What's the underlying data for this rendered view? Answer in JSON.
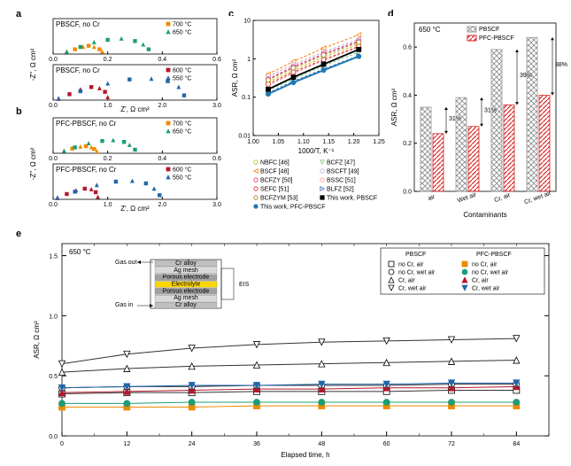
{
  "panel_a": {
    "label": "a",
    "title1": "PBSCF, no Cr",
    "title2": "PBSCF, no Cr",
    "xlabel": "Z', Ω cm²",
    "ylabel": "-Z'', Ω cm²",
    "legend1": [
      "700 °C",
      "650 °C"
    ],
    "legend2": [
      "600 °C",
      "550 °C"
    ],
    "colors": {
      "700": "#ed8b00",
      "650": "#1b9e77",
      "600": "#b2182b",
      "550": "#2166ac"
    },
    "top": {
      "xlim": [
        0,
        0.6
      ],
      "xtick": [
        0.0,
        0.2,
        0.4,
        0.6
      ],
      "ylim": [
        0,
        0.15
      ],
      "data700_x": [
        0.05,
        0.08,
        0.11,
        0.13,
        0.15,
        0.17,
        0.18
      ],
      "data700_y": [
        0.01,
        0.02,
        0.03,
        0.035,
        0.03,
        0.02,
        0.01
      ],
      "data650_x": [
        0.05,
        0.1,
        0.15,
        0.2,
        0.25,
        0.3,
        0.33,
        0.35
      ],
      "data650_y": [
        0.01,
        0.03,
        0.05,
        0.06,
        0.065,
        0.055,
        0.04,
        0.02
      ]
    },
    "bot": {
      "xlim": [
        0,
        3
      ],
      "xtick": [
        0,
        1,
        2,
        3
      ],
      "ylim": [
        0,
        0.6
      ],
      "data600_x": [
        0.1,
        0.3,
        0.5,
        0.7,
        0.85,
        0.95,
        1.0
      ],
      "data600_y": [
        0.02,
        0.1,
        0.18,
        0.22,
        0.2,
        0.14,
        0.05
      ],
      "data550_x": [
        0.1,
        0.5,
        1.0,
        1.4,
        1.8,
        2.1,
        2.3,
        2.4
      ],
      "data550_y": [
        0.03,
        0.15,
        0.28,
        0.35,
        0.36,
        0.32,
        0.22,
        0.08
      ]
    }
  },
  "panel_b": {
    "label": "b",
    "title1": "PFC-PBSCF, no Cr",
    "title2": "PFC-PBSCF, no Cr",
    "xlabel": "Z', Ω cm²",
    "ylabel": "-Z'', Ω cm²",
    "legend1": [
      "700 °C",
      "650 °C"
    ],
    "legend2": [
      "600 °C",
      "550 °C"
    ],
    "colors": {
      "700": "#ed8b00",
      "650": "#1b9e77",
      "600": "#b2182b",
      "550": "#2166ac"
    },
    "top": {
      "xlim": [
        0,
        0.6
      ],
      "xtick": [
        0.0,
        0.2,
        0.4,
        0.6
      ],
      "ylim": [
        0,
        0.15
      ],
      "data700_x": [
        0.04,
        0.07,
        0.1,
        0.12,
        0.14,
        0.15,
        0.16
      ],
      "data700_y": [
        0.01,
        0.02,
        0.028,
        0.03,
        0.025,
        0.018,
        0.008
      ],
      "data650_x": [
        0.04,
        0.08,
        0.13,
        0.18,
        0.22,
        0.26,
        0.28,
        0.3
      ],
      "data650_y": [
        0.01,
        0.025,
        0.042,
        0.052,
        0.055,
        0.048,
        0.035,
        0.015
      ]
    },
    "bot": {
      "xlim": [
        0,
        3
      ],
      "xtick": [
        0,
        1,
        2,
        3
      ],
      "ylim": [
        0,
        0.6
      ],
      "data600_x": [
        0.08,
        0.25,
        0.42,
        0.58,
        0.7,
        0.78,
        0.82
      ],
      "data600_y": [
        0.02,
        0.09,
        0.15,
        0.18,
        0.17,
        0.12,
        0.04
      ],
      "data550_x": [
        0.08,
        0.4,
        0.8,
        1.15,
        1.45,
        1.7,
        1.85,
        1.95
      ],
      "data550_y": [
        0.03,
        0.13,
        0.24,
        0.3,
        0.31,
        0.27,
        0.18,
        0.07
      ]
    }
  },
  "panel_c": {
    "label": "c",
    "xlabel": "1000/T, K⁻¹",
    "ylabel": "ASR, Ω cm²",
    "xlim": [
      1.0,
      1.25
    ],
    "xtick": [
      1.0,
      1.05,
      1.1,
      1.15,
      1.2,
      1.25
    ],
    "ylim": [
      0.01,
      10
    ],
    "ytick": [
      0.01,
      0.1,
      1,
      10
    ],
    "ytick_lbl": [
      "0.01",
      "0.1",
      "1",
      "10"
    ],
    "series": [
      {
        "name": "NBFC [46]",
        "color": "#bcbd22",
        "marker": "circle",
        "x": [
          1.03,
          1.08,
          1.14,
          1.21
        ],
        "y": [
          0.25,
          0.5,
          1.1,
          2.4
        ],
        "dashed": true
      },
      {
        "name": "BCFZ [47]",
        "color": "#7fc97f",
        "marker": "triangle-down",
        "x": [
          1.03,
          1.08,
          1.14,
          1.21
        ],
        "y": [
          0.15,
          0.3,
          0.65,
          1.5
        ],
        "dashed": true
      },
      {
        "name": "BSCF [48]",
        "color": "#ff7f0e",
        "marker": "triangle-left",
        "x": [
          1.03,
          1.08,
          1.14,
          1.21
        ],
        "y": [
          0.4,
          0.85,
          1.9,
          4.2
        ],
        "dashed": true
      },
      {
        "name": "BSCFT [49]",
        "color": "#beaed4",
        "marker": "circle",
        "x": [
          1.03,
          1.08,
          1.14,
          1.21
        ],
        "y": [
          0.35,
          0.7,
          1.5,
          3.2
        ],
        "dashed": true
      },
      {
        "name": "BCFZY [50]",
        "color": "#e7298a",
        "marker": "star",
        "x": [
          1.03,
          1.08,
          1.14,
          1.21
        ],
        "y": [
          0.3,
          0.62,
          1.35,
          2.9
        ],
        "dashed": true
      },
      {
        "name": "BSSC [51]",
        "color": "#fb9a99",
        "marker": "hex",
        "x": [
          1.03,
          1.08,
          1.14,
          1.21
        ],
        "y": [
          0.2,
          0.42,
          0.9,
          2.0
        ],
        "dashed": true
      },
      {
        "name": "SEFC [51]",
        "color": "#d62728",
        "marker": "star",
        "x": [
          1.03,
          1.08,
          1.14,
          1.21
        ],
        "y": [
          0.22,
          0.45,
          0.95,
          2.1
        ],
        "dashed": true
      },
      {
        "name": "BLFZ [52]",
        "color": "#386cb0",
        "marker": "triangle-right",
        "x": [
          1.03,
          1.08,
          1.14,
          1.21
        ],
        "y": [
          0.13,
          0.26,
          0.54,
          1.2
        ],
        "dashed": true
      },
      {
        "name": "BCFZYM [53]",
        "color": "#a6761d",
        "marker": "star",
        "x": [
          1.03,
          1.08,
          1.14,
          1.21
        ],
        "y": [
          0.28,
          0.58,
          1.25,
          2.7
        ],
        "dashed": true
      },
      {
        "name": "This work, PBSCF",
        "color": "#000000",
        "marker": "square",
        "x": [
          1.03,
          1.08,
          1.14,
          1.21
        ],
        "y": [
          0.16,
          0.33,
          0.72,
          1.75
        ],
        "dashed": false
      },
      {
        "name": "This work, PFC-PBSCF",
        "color": "#1f77b4",
        "marker": "circle",
        "x": [
          1.03,
          1.08,
          1.14,
          1.21
        ],
        "y": [
          0.12,
          0.24,
          0.5,
          1.15
        ],
        "dashed": false
      }
    ]
  },
  "panel_d": {
    "label": "d",
    "title": "650 °C",
    "xlabel": "Contaminants",
    "ylabel": "ASR, Ω cm²",
    "categories": [
      "air",
      "Wet air",
      "Cr, air",
      "Cr, wet air"
    ],
    "ylim": [
      0,
      0.7
    ],
    "ytick": [
      0.0,
      0.2,
      0.4,
      0.6
    ],
    "series": [
      {
        "name": "PBSCF",
        "color": "#999999",
        "hatch": "cross",
        "values": [
          0.35,
          0.39,
          0.59,
          0.64
        ]
      },
      {
        "name": "PFC-PBSCF",
        "color": "#d62728",
        "hatch": "diag",
        "values": [
          0.24,
          0.27,
          0.36,
          0.4
        ]
      }
    ],
    "annotations": [
      "31%",
      "31%",
      "39%",
      "38%"
    ]
  },
  "panel_e": {
    "label": "e",
    "title": "650 °C",
    "xlabel": "Elapsed time, h",
    "ylabel": "ASR, Ω cm²",
    "xlim": [
      0,
      90
    ],
    "xtick": [
      0,
      12,
      24,
      36,
      48,
      60,
      72,
      84
    ],
    "xtick_minor": [
      0,
      6,
      12,
      18,
      24,
      30,
      36,
      42,
      48,
      54,
      60,
      66,
      72,
      78,
      84,
      90
    ],
    "ylim": [
      0.0,
      1.6
    ],
    "ytick": [
      0.0,
      0.5,
      1.0,
      1.5
    ],
    "legend_groups": [
      "PBSCF",
      "PFC-PBSCF"
    ],
    "series": [
      {
        "name": "no Cr, air",
        "marker": "square",
        "filled": false,
        "color": "#000",
        "x": [
          0,
          12,
          24,
          36,
          48,
          60,
          72,
          84
        ],
        "y": [
          0.35,
          0.36,
          0.36,
          0.37,
          0.37,
          0.37,
          0.38,
          0.38
        ]
      },
      {
        "name": "no Cr, wet air",
        "marker": "circle",
        "filled": false,
        "color": "#000",
        "x": [
          0,
          12,
          24,
          36,
          48,
          60,
          72,
          84
        ],
        "y": [
          0.4,
          0.41,
          0.41,
          0.42,
          0.42,
          0.42,
          0.43,
          0.43
        ]
      },
      {
        "name": "Cr, air",
        "marker": "triangle-up",
        "filled": false,
        "color": "#000",
        "x": [
          0,
          12,
          24,
          36,
          48,
          60,
          72,
          84
        ],
        "y": [
          0.53,
          0.56,
          0.58,
          0.59,
          0.6,
          0.61,
          0.62,
          0.63
        ]
      },
      {
        "name": "Cr, wet air",
        "marker": "triangle-down",
        "filled": false,
        "color": "#000",
        "x": [
          0,
          12,
          24,
          36,
          48,
          60,
          72,
          84
        ],
        "y": [
          0.6,
          0.68,
          0.73,
          0.76,
          0.78,
          0.79,
          0.8,
          0.81
        ]
      },
      {
        "name": "no Cr, air",
        "marker": "square",
        "filled": true,
        "color": "#ed8b00",
        "x": [
          0,
          12,
          24,
          36,
          48,
          60,
          72,
          84
        ],
        "y": [
          0.24,
          0.24,
          0.24,
          0.25,
          0.25,
          0.25,
          0.25,
          0.25
        ]
      },
      {
        "name": "no Cr, wet air",
        "marker": "circle",
        "filled": true,
        "color": "#1b9e77",
        "x": [
          0,
          12,
          24,
          36,
          48,
          60,
          72,
          84
        ],
        "y": [
          0.27,
          0.27,
          0.28,
          0.28,
          0.28,
          0.28,
          0.28,
          0.28
        ]
      },
      {
        "name": "Cr, air",
        "marker": "triangle-up",
        "filled": true,
        "color": "#b2182b",
        "x": [
          0,
          12,
          24,
          36,
          48,
          60,
          72,
          84
        ],
        "y": [
          0.36,
          0.37,
          0.38,
          0.39,
          0.39,
          0.4,
          0.4,
          0.41
        ]
      },
      {
        "name": "Cr, wet air",
        "marker": "triangle-down",
        "filled": true,
        "color": "#2166ac",
        "x": [
          0,
          12,
          24,
          36,
          48,
          60,
          72,
          84
        ],
        "y": [
          0.4,
          0.41,
          0.42,
          0.42,
          0.43,
          0.43,
          0.44,
          0.44
        ]
      }
    ],
    "inset": {
      "gas_out": "Gas out",
      "gas_in": "Gas in",
      "labels": [
        "Cr alloy",
        "Ag mesh",
        "Porous electrode",
        "Electrolyte",
        "Porous electrode",
        "Ag mesh",
        "Cr alloy"
      ],
      "eis": "EIS"
    }
  }
}
